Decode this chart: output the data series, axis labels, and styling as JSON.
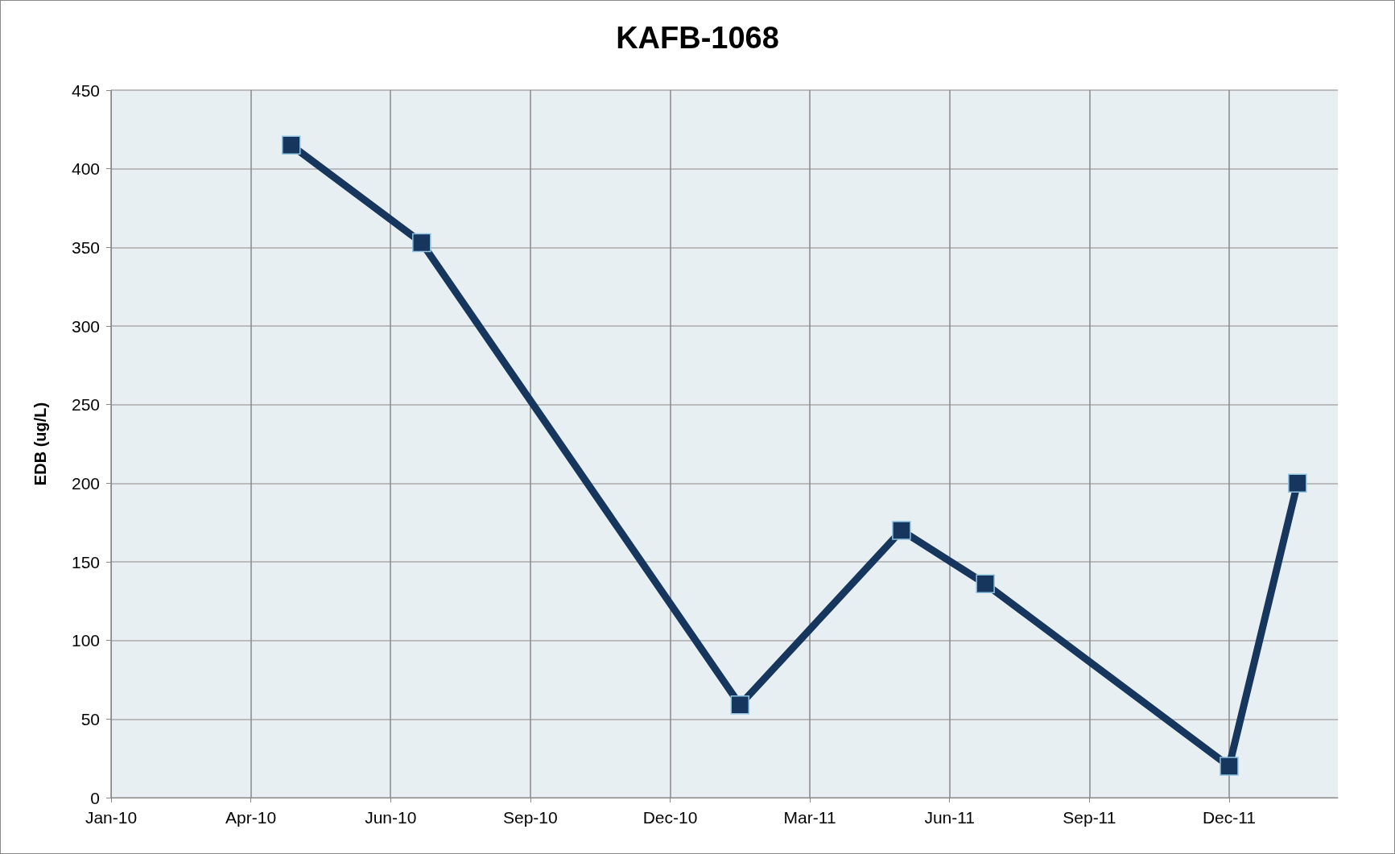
{
  "chart_data": {
    "type": "line",
    "title": "KAFB-1068",
    "ylabel": "EDB (ug/L)",
    "x": [
      "2010-04-27",
      "2010-07-20",
      "2011-02-10",
      "2011-05-25",
      "2011-07-18",
      "2011-12-22",
      "2012-02-04"
    ],
    "series": [
      {
        "color": "#17365d",
        "values": [
          415,
          353,
          59,
          170,
          136,
          20,
          200
        ]
      }
    ],
    "xlim": [
      "2010-01-01",
      "2012-03-01"
    ],
    "xticks": [
      {
        "value": "2010-01-01",
        "label": "Jan-10"
      },
      {
        "value": "2010-04-01",
        "label": "Apr-10"
      },
      {
        "value": "2010-06-30",
        "label": "Jun-10"
      },
      {
        "value": "2010-09-28",
        "label": "Sep-10"
      },
      {
        "value": "2010-12-27",
        "label": "Dec-10"
      },
      {
        "value": "2011-03-27",
        "label": "Mar-11"
      },
      {
        "value": "2011-06-25",
        "label": "Jun-11"
      },
      {
        "value": "2011-09-23",
        "label": "Sep-11"
      },
      {
        "value": "2011-12-22",
        "label": "Dec-11"
      }
    ],
    "ylim": [
      0,
      450
    ],
    "yticks": [
      0,
      50,
      100,
      150,
      200,
      250,
      300,
      350,
      400,
      450
    ],
    "grid": true,
    "marker": "square",
    "line_style": "solid"
  }
}
